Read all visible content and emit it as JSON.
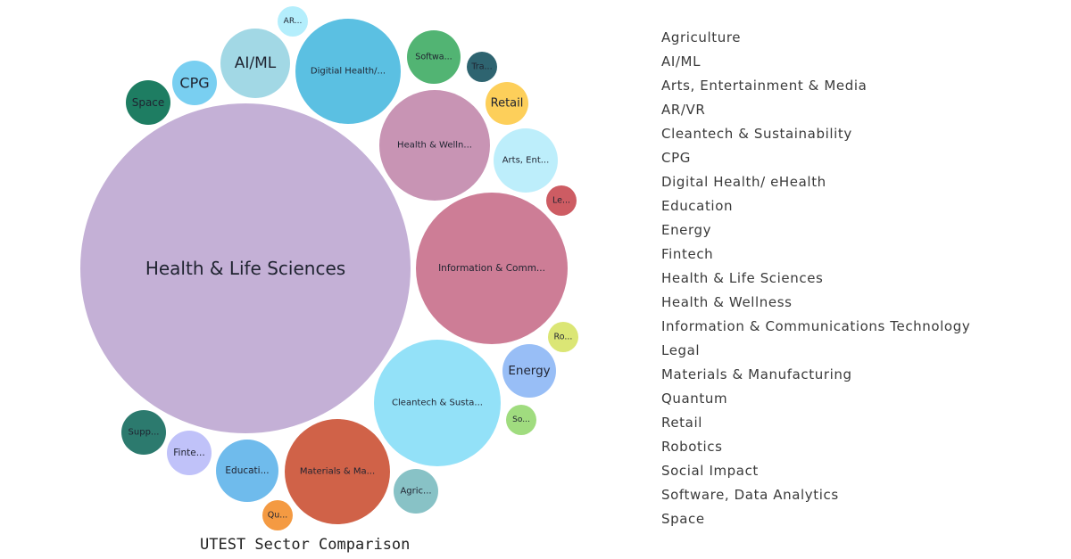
{
  "chart_data": {
    "type": "bubble",
    "title": "UTEST Sector Comparison",
    "legend_position": "right",
    "legend": [
      "Agriculture",
      "AI/ML",
      "Arts, Entertainment & Media",
      "AR/VR",
      "Cleantech & Sustainability",
      "CPG",
      "Digital Health/ eHealth",
      "Education",
      "Energy",
      "Fintech",
      "Health & Life Sciences",
      "Health & Wellness",
      "Information & Communications Technology",
      "Legal",
      "Materials & Manufacturing",
      "Quantum",
      "Retail",
      "Robotics",
      "Social Impact",
      "Software, Data Analytics",
      "Space"
    ],
    "bubbles": [
      {
        "label": "Health & Life Sciences",
        "color": "#c4b0d6"
      },
      {
        "label": "Information & Comm...",
        "color": "#cd7d96"
      },
      {
        "label": "Cleantech & Susta...",
        "color": "#93e1f8"
      },
      {
        "label": "Health & Welln...",
        "color": "#c894b4"
      },
      {
        "label": "Materials & Ma...",
        "color": "#d06248"
      },
      {
        "label": "Digitial Health/...",
        "color": "#5bc0e2"
      },
      {
        "label": "AI/ML",
        "color": "#a2d8e5"
      },
      {
        "label": "Arts, Ent...",
        "color": "#bdeefb"
      },
      {
        "label": "Educati...",
        "color": "#6fbbec"
      },
      {
        "label": "Energy",
        "color": "#98bef6"
      },
      {
        "label": "Softwa...",
        "color": "#52b473"
      },
      {
        "label": "Agric...",
        "color": "#88c2c6"
      },
      {
        "label": "Supp...",
        "color": "#2c7a6e"
      },
      {
        "label": "CPG",
        "color": "#79cff1"
      },
      {
        "label": "Space",
        "color": "#1e7d62"
      },
      {
        "label": "Finte...",
        "color": "#c0c2f9"
      },
      {
        "label": "Retail",
        "color": "#fdcf5a"
      },
      {
        "label": "Tra...",
        "color": "#2e6470"
      },
      {
        "label": "AR...",
        "color": "#b4eefc"
      },
      {
        "label": "Le...",
        "color": "#cd5c63"
      },
      {
        "label": "Ro...",
        "color": "#dbe675"
      },
      {
        "label": "So...",
        "color": "#a0dc7f"
      },
      {
        "label": "Qu...",
        "color": "#f49a42"
      }
    ]
  }
}
